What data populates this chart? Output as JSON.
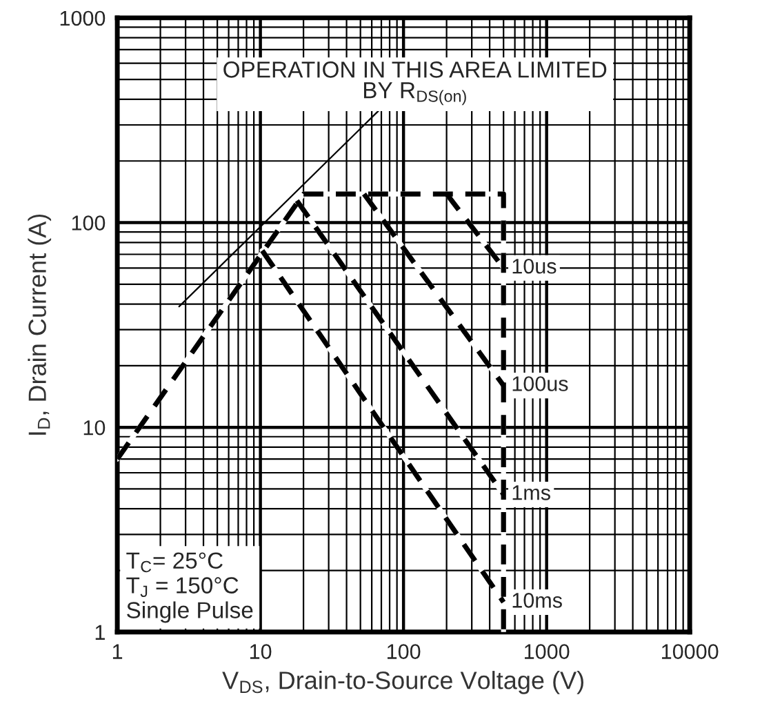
{
  "chart_data": {
    "type": "line",
    "xlabel": "V$_{DS}$, Drain-to-Source Voltage (V)",
    "ylabel": "I$_{D}$, Drain Current (A)",
    "log": "xy",
    "grid": true,
    "marker": "none",
    "line_style": "dashed",
    "legend": false,
    "xlim": [
      1,
      10000
    ],
    "ylim": [
      1,
      1000
    ],
    "xticks": [
      1,
      10,
      100,
      1000,
      10000
    ],
    "yticks": [
      1,
      10,
      100,
      1000
    ],
    "series": [
      {
        "color": "#000000",
        "x": [
          1,
          20,
          500,
          500
        ],
        "values": [
          7,
          138,
          138,
          1
        ]
      },
      {
        "name": "10us",
        "color": "#000000",
        "x": [
          200,
          500
        ],
        "values": [
          138,
          60
        ]
      },
      {
        "name": "100us",
        "color": "#000000",
        "x": [
          53,
          500
        ],
        "values": [
          138,
          16
        ]
      },
      {
        "name": "1ms",
        "color": "#000000",
        "x": [
          18,
          500
        ],
        "values": [
          128,
          4.7
        ]
      },
      {
        "name": "10ms",
        "color": "#000000",
        "x": [
          10.3,
          500
        ],
        "values": [
          73,
          1.4
        ]
      }
    ],
    "annotations": [
      "OPERATION IN THIS AREA LIMITED\nBY R$_{DS(on)}$",
      "T$_{C}$= 25°C\nT$_{J}$ = 150°C\nSingle Pulse"
    ]
  }
}
